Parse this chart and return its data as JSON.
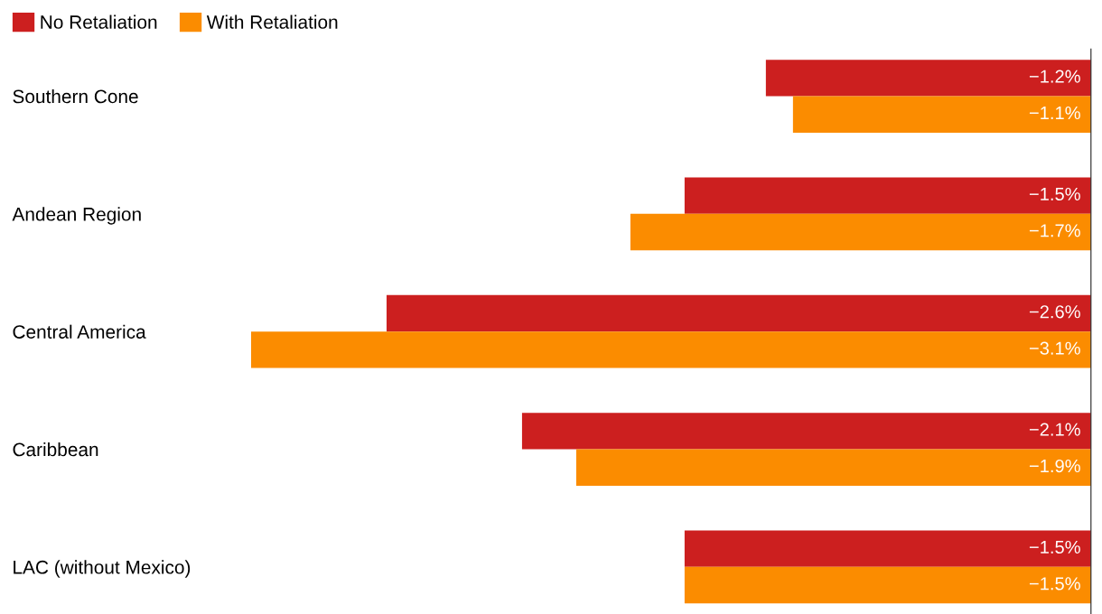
{
  "chart_data": {
    "type": "bar",
    "orientation": "horizontal",
    "categories": [
      "Southern Cone",
      "Andean Region",
      "Central America",
      "Caribbean",
      "LAC (without Mexico)"
    ],
    "series": [
      {
        "name": "No Retaliation",
        "color": "#cc1f1f",
        "values": [
          -1.2,
          -1.5,
          -2.6,
          -2.1,
          -1.5
        ],
        "value_labels": [
          "−1.2%",
          "−1.5%",
          "−2.6%",
          "−2.1%",
          "−1.5%"
        ]
      },
      {
        "name": "With Retaliation",
        "color": "#fb8c00",
        "values": [
          -1.1,
          -1.7,
          -3.1,
          -1.9,
          -1.5
        ],
        "value_labels": [
          "−1.1%",
          "−1.7%",
          "−3.1%",
          "−1.9%",
          "−1.5%"
        ]
      }
    ],
    "data_labels": true,
    "legend": "top left",
    "grid": false,
    "tick_labels": "y"
  }
}
